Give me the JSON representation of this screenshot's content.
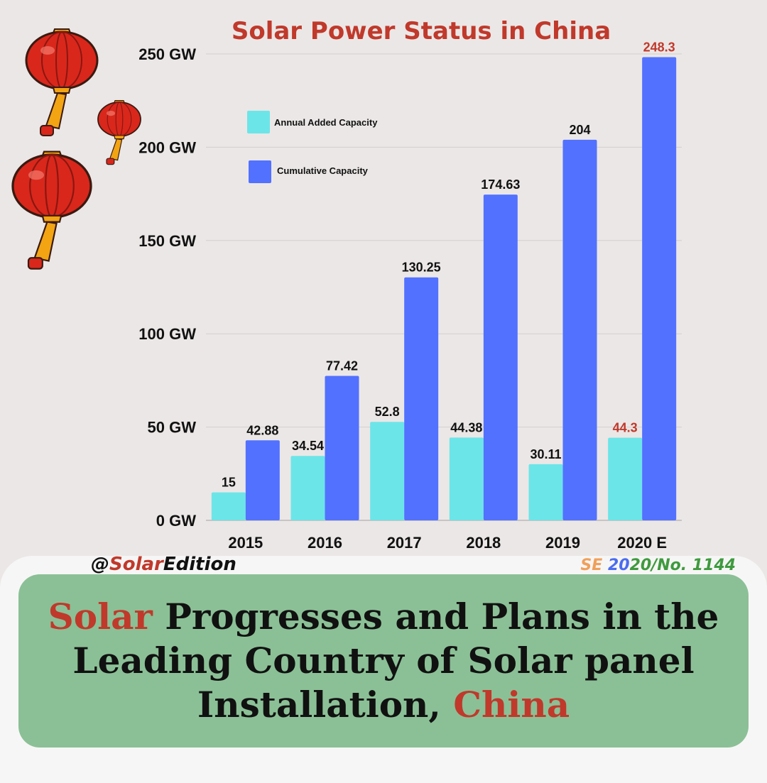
{
  "chart_data": {
    "type": "bar",
    "title": "Solar Power Status in China",
    "categories": [
      "2015",
      "2016",
      "2017",
      "2018",
      "2019",
      "2020 E"
    ],
    "series": [
      {
        "name": "Annual Added Capacity",
        "color": "#6ce5e8",
        "values": [
          15,
          34.54,
          52.8,
          44.38,
          30.11,
          44.3
        ],
        "labels": [
          "15",
          "34.54",
          "52.8",
          "44.38",
          "30.11",
          "44.3"
        ]
      },
      {
        "name": "Cumulative Capacity",
        "color": "#5271ff",
        "values": [
          42.88,
          77.42,
          130.25,
          174.63,
          204,
          248.3
        ],
        "labels": [
          "42.88",
          "77.42",
          "130.25",
          "174.63",
          "204",
          "248.3"
        ]
      }
    ],
    "yticks": [
      0,
      50,
      100,
      150,
      200,
      250
    ],
    "ytick_labels": [
      "0 GW",
      "50 GW",
      "100 GW",
      "150 GW",
      "200 GW",
      "250 GW"
    ],
    "ylim": [
      0,
      250
    ],
    "grid": true,
    "legend_position": "top-left",
    "estimate_label_color": "#c0392b",
    "title_color": "#c0392b"
  },
  "footer": {
    "handle_prefix": "@",
    "handle_accent": "Solar",
    "handle_suffix": "Edition",
    "edition_se": "SE",
    "edition_year_a": "20",
    "edition_rest": "20/No. 1144"
  },
  "headline": {
    "part1": "Solar",
    "part2": " Progresses and Plans in the Leading Country of Solar panel Installation, ",
    "part3": "China"
  },
  "decor": {
    "icon": "paper-lantern-icon",
    "lantern_color": "#d9271c",
    "tassel_color": "#f2a413"
  }
}
